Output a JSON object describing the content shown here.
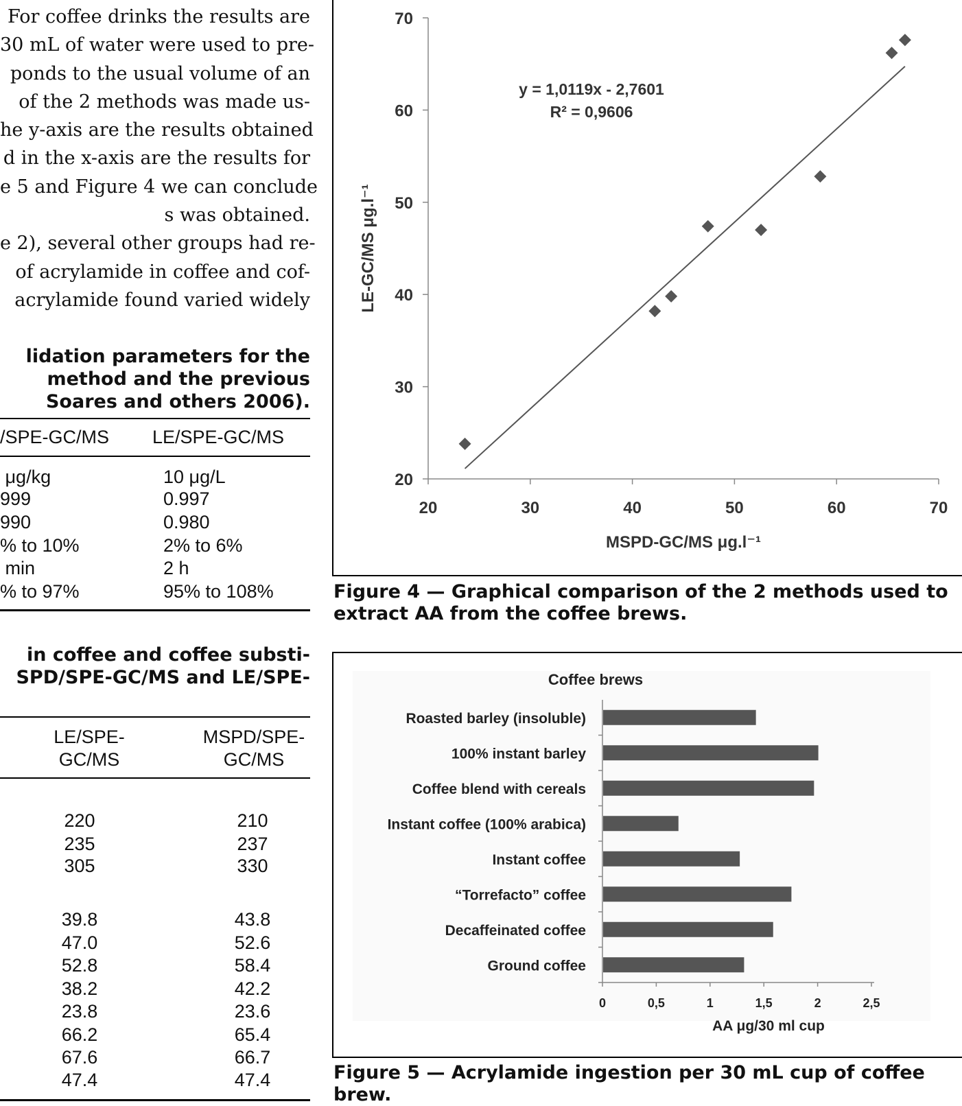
{
  "body_text": [
    "For coffee drinks the results are",
    "30 mL of water were used to pre-",
    "ponds to the usual volume of an",
    "of the 2 methods was made us-",
    "he y-axis are the results obtained",
    "d in the x-axis are the results for",
    "e 5 and Figure 4 we can conclude",
    "s was obtained.",
    "e 2), several other groups had re-",
    "of acrylamide in coffee and cof-",
    "acrylamide found varied widely"
  ],
  "table4": {
    "caption": [
      "lidation parameters for the",
      "method and the previous",
      "Soares and others 2006)."
    ],
    "headers": [
      "/SPE-GC/MS",
      "LE/SPE-GC/MS"
    ],
    "rows": [
      [
        " μg/kg",
        "10 μg/L"
      ],
      [
        "999",
        "0.997"
      ],
      [
        "990",
        "0.980"
      ],
      [
        "% to 10%",
        "2% to 6%"
      ],
      [
        " min",
        "2 h"
      ],
      [
        "% to 97%",
        "95% to 108%"
      ]
    ]
  },
  "table5": {
    "caption": [
      "in coffee and coffee substi-",
      "SPD/SPE-GC/MS and LE/SPE-"
    ],
    "headers": [
      [
        "LE/SPE-",
        "GC/MS"
      ],
      [
        "MSPD/SPE-",
        "GC/MS"
      ]
    ],
    "group1": [
      [
        "220",
        "210"
      ],
      [
        "235",
        "237"
      ],
      [
        "305",
        "330"
      ]
    ],
    "group2": [
      [
        "39.8",
        "43.8"
      ],
      [
        "47.0",
        "52.6"
      ],
      [
        "52.8",
        "58.4"
      ],
      [
        "38.2",
        "42.2"
      ],
      [
        "23.8",
        "23.6"
      ],
      [
        "66.2",
        "65.4"
      ],
      [
        "67.6",
        "66.7"
      ],
      [
        "47.4",
        "47.4"
      ]
    ]
  },
  "figure4": {
    "caption": [
      "Figure 4 — Graphical comparison of the 2 methods used to",
      "extract AA from the coffee brews."
    ]
  },
  "figure5": {
    "caption": [
      "Figure 5 — Acrylamide ingestion per 30 mL cup of coffee",
      "brew."
    ]
  },
  "chart_data": [
    {
      "type": "scatter",
      "title": "",
      "xlabel": "MSPD-GC/MS μg.l⁻¹",
      "ylabel": "LE-GC/MS μg.l⁻¹",
      "xlim": [
        20,
        70
      ],
      "ylim": [
        20,
        70
      ],
      "xticks": [
        20,
        30,
        40,
        50,
        60,
        70
      ],
      "yticks": [
        20,
        30,
        40,
        50,
        60,
        70
      ],
      "x": [
        23.6,
        42.2,
        43.8,
        47.4,
        52.6,
        58.4,
        65.4,
        66.7
      ],
      "y": [
        23.8,
        38.2,
        39.8,
        47.4,
        47.0,
        52.8,
        66.2,
        67.6
      ],
      "trendline": {
        "slope": 1.0119,
        "intercept": -2.7601,
        "x_range": [
          23.6,
          66.7
        ]
      },
      "annotations": [
        "y = 1,0119x - 2,7601",
        "R² = 0,9606"
      ],
      "marker_color": "#555555",
      "grid": false
    },
    {
      "type": "bar",
      "orientation": "horizontal",
      "title": "Coffee brews",
      "xlabel": "AA μg/30 ml cup",
      "ylabel": "",
      "categories": [
        "Roasted barley (insoluble)",
        "100% instant barley",
        "Coffee blend with cereals",
        "Instant coffee (100% arabica)",
        "Instant coffee",
        "“Torrefacto” coffee",
        "Decaffeinated coffee",
        "Ground coffee"
      ],
      "values": [
        1.42,
        2.0,
        1.96,
        0.7,
        1.27,
        1.75,
        1.58,
        1.31
      ],
      "xlim": [
        0,
        2.5
      ],
      "xticks": [
        "0",
        "0,5",
        "1",
        "1,5",
        "2",
        "2,5"
      ],
      "bar_color": "#555555",
      "grid": false
    }
  ]
}
